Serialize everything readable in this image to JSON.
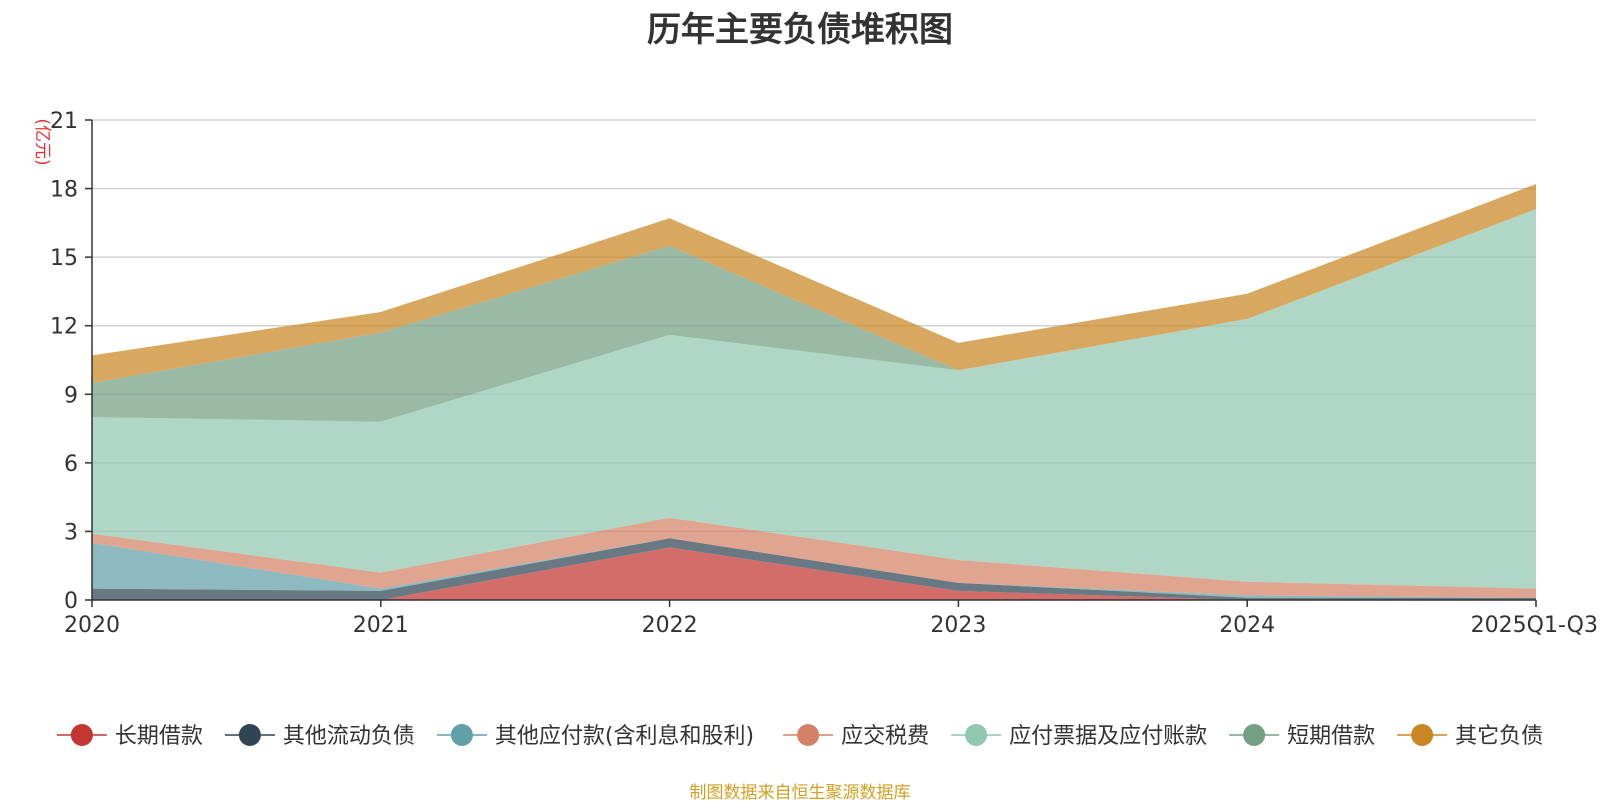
{
  "chart_data": {
    "type": "area",
    "stacked": true,
    "title": "历年主要负债堆积图",
    "ylabel": "(亿元)",
    "xlabel": "",
    "ylim": [
      0,
      21
    ],
    "yticks": [
      0,
      3,
      6,
      9,
      12,
      15,
      18,
      21
    ],
    "categories": [
      "2020",
      "2021",
      "2022",
      "2023",
      "2024",
      "2025Q1-Q3"
    ],
    "grid": true,
    "legend_position": "bottom",
    "series": [
      {
        "name": "长期借款",
        "color": "#c23531",
        "values": [
          0.0,
          0.0,
          2.3,
          0.4,
          0.0,
          0.0
        ]
      },
      {
        "name": "其他流动负债",
        "color": "#2f4554",
        "values": [
          0.5,
          0.4,
          0.4,
          0.35,
          0.1,
          0.1
        ]
      },
      {
        "name": "其他应付款(含利息和股利)",
        "color": "#61a0a8",
        "values": [
          2.0,
          0.1,
          0.0,
          0.0,
          0.1,
          0.0
        ]
      },
      {
        "name": "应交税费",
        "color": "#d48265",
        "values": [
          0.4,
          0.7,
          0.9,
          1.0,
          0.6,
          0.4
        ]
      },
      {
        "name": "应付票据及应付账款",
        "color": "#91c7ae",
        "values": [
          5.1,
          6.6,
          8.0,
          8.3,
          11.5,
          16.6
        ]
      },
      {
        "name": "短期借款",
        "color": "#749f83",
        "values": [
          1.5,
          3.9,
          3.9,
          0.0,
          0.0,
          0.0
        ]
      },
      {
        "name": "其它负债",
        "color": "#ca8622",
        "values": [
          1.2,
          0.9,
          1.2,
          1.2,
          1.1,
          1.1
        ]
      }
    ]
  },
  "footer": {
    "source": "制图数据来自恒生聚源数据库"
  }
}
